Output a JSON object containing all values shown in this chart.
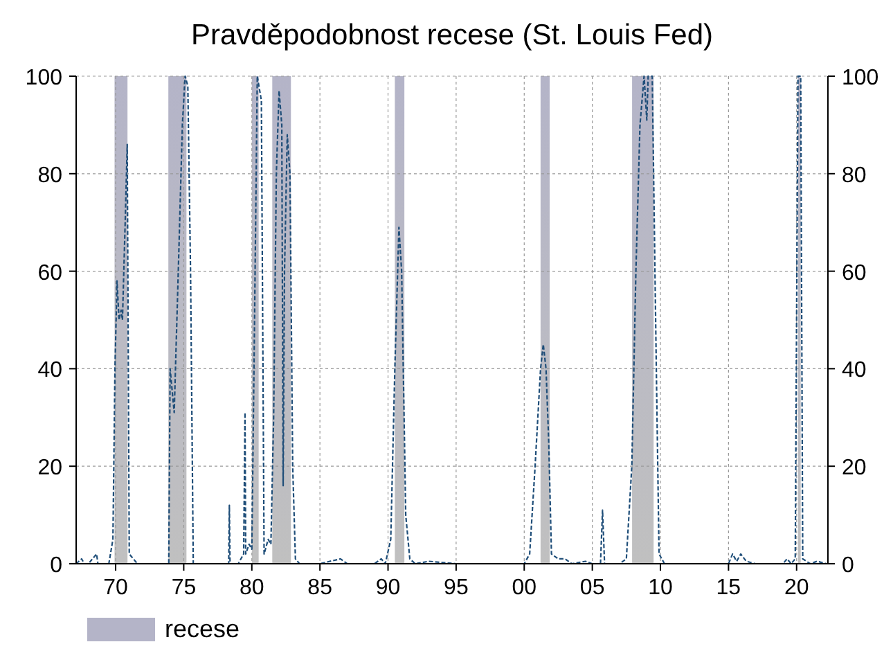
{
  "chart_data": {
    "type": "line",
    "title": "Pravděpodobnost recese (St. Louis Fed)",
    "xlim": [
      1967.1,
      2022.3
    ],
    "xticks": [
      {
        "value": 1970,
        "label": "70"
      },
      {
        "value": 1975,
        "label": "75"
      },
      {
        "value": 1980,
        "label": "80"
      },
      {
        "value": 1985,
        "label": "85"
      },
      {
        "value": 1990,
        "label": "90"
      },
      {
        "value": 1995,
        "label": "95"
      },
      {
        "value": 2000,
        "label": "00"
      },
      {
        "value": 2005,
        "label": "05"
      },
      {
        "value": 2010,
        "label": "10"
      },
      {
        "value": 2015,
        "label": "15"
      },
      {
        "value": 2020,
        "label": "20"
      }
    ],
    "ylim": [
      0,
      100
    ],
    "yticks": [
      0,
      20,
      40,
      60,
      80,
      100
    ],
    "y2lim": [
      0,
      100
    ],
    "y2ticks": [
      0,
      20,
      40,
      60,
      80,
      100
    ],
    "grid": true,
    "legend": "bottom left",
    "line_style": "dashed",
    "series": [
      {
        "color": "#1f4e79",
        "x": [
          1967.1,
          1967.5,
          1967.7,
          1968,
          1968.6,
          1968.7,
          1969.5,
          1969.8,
          1969.95,
          1970.1,
          1970.25,
          1970.4,
          1970.5,
          1970.7,
          1970.85,
          1971.0,
          1971.3,
          1971.6,
          1972,
          1973,
          1973.9,
          1974.0,
          1974.3,
          1974.6,
          1974.9,
          1975.1,
          1975.3,
          1975.5,
          1975.7,
          1976,
          1978,
          1978.3,
          1978.35,
          1978.4,
          1979,
          1979.4,
          1979.5,
          1979.55,
          1979.8,
          1980.0,
          1980.2,
          1980.4,
          1980.7,
          1980.9,
          1981.2,
          1981.4,
          1981.6,
          1981.8,
          1982.0,
          1982.2,
          1982.3,
          1982.4,
          1982.6,
          1982.8,
          1983.0,
          1983.2,
          1983.5,
          1985,
          1986.5,
          1987,
          1989,
          1989.5,
          1989.8,
          1990.2,
          1990.5,
          1990.8,
          1991.0,
          1991.3,
          1991.6,
          1992,
          1993,
          1995,
          1997,
          2000,
          2000.4,
          2000.8,
          2001.2,
          2001.4,
          2001.6,
          2001.8,
          2002.0,
          2002.5,
          2003,
          2003.5,
          2004.5,
          2005,
          2005.6,
          2005.75,
          2005.9,
          2007,
          2007.5,
          2007.9,
          2008.2,
          2008.5,
          2008.8,
          2009.0,
          2009.1,
          2009.4,
          2009.7,
          2009.9,
          2010.3,
          2012,
          2014,
          2015.0,
          2015.3,
          2015.6,
          2015.9,
          2016.3,
          2017,
          2019,
          2019.3,
          2019.6,
          2019.9,
          2020.1,
          2020.3,
          2020.45,
          2021,
          2021.5,
          2022.2
        ],
        "values": [
          0,
          1,
          0,
          0,
          2,
          0,
          0,
          5,
          40,
          58,
          50,
          52,
          50,
          70,
          86,
          2,
          1,
          0,
          0,
          0,
          0,
          40,
          31,
          60,
          90,
          100,
          98,
          60,
          0,
          0,
          0,
          0,
          12,
          0,
          0,
          2,
          31,
          2,
          4,
          3,
          50,
          100,
          95,
          2,
          5,
          4,
          30,
          80,
          97,
          90,
          16,
          60,
          88,
          80,
          20,
          1,
          0,
          0,
          1,
          0,
          0,
          1,
          0,
          5,
          40,
          69,
          60,
          10,
          1,
          0,
          0.5,
          0,
          0,
          0,
          2,
          20,
          40,
          45,
          40,
          25,
          2,
          1,
          1,
          0,
          0.5,
          0,
          0,
          11,
          0,
          0,
          1,
          20,
          60,
          90,
          100,
          91,
          100,
          100,
          40,
          2,
          0,
          0,
          0,
          0,
          2,
          0.5,
          2,
          0.5,
          0,
          0,
          1,
          0,
          1,
          100,
          100,
          1,
          0,
          0.5,
          0
        ]
      }
    ],
    "bands": [
      {
        "axis": "x",
        "from": 1969.92,
        "to": 1970.87,
        "label": "recese",
        "color": "#b4b4c8"
      },
      {
        "axis": "x",
        "from": 1973.87,
        "to": 1975.2,
        "color": "#b4b4c8"
      },
      {
        "axis": "x",
        "from": 1980.0,
        "to": 1980.5,
        "color": "#b4b4c8"
      },
      {
        "axis": "x",
        "from": 1981.5,
        "to": 1982.87,
        "color": "#b4b4c8"
      },
      {
        "axis": "x",
        "from": 1990.5,
        "to": 1991.2,
        "color": "#b4b4c8"
      },
      {
        "axis": "x",
        "from": 2001.2,
        "to": 2001.87,
        "color": "#b4b4c8"
      },
      {
        "axis": "x",
        "from": 2007.92,
        "to": 2009.5,
        "color": "#b4b4c8"
      },
      {
        "axis": "x",
        "from": 2020.1,
        "to": 2020.3,
        "color": "#b4b4c8"
      }
    ]
  }
}
